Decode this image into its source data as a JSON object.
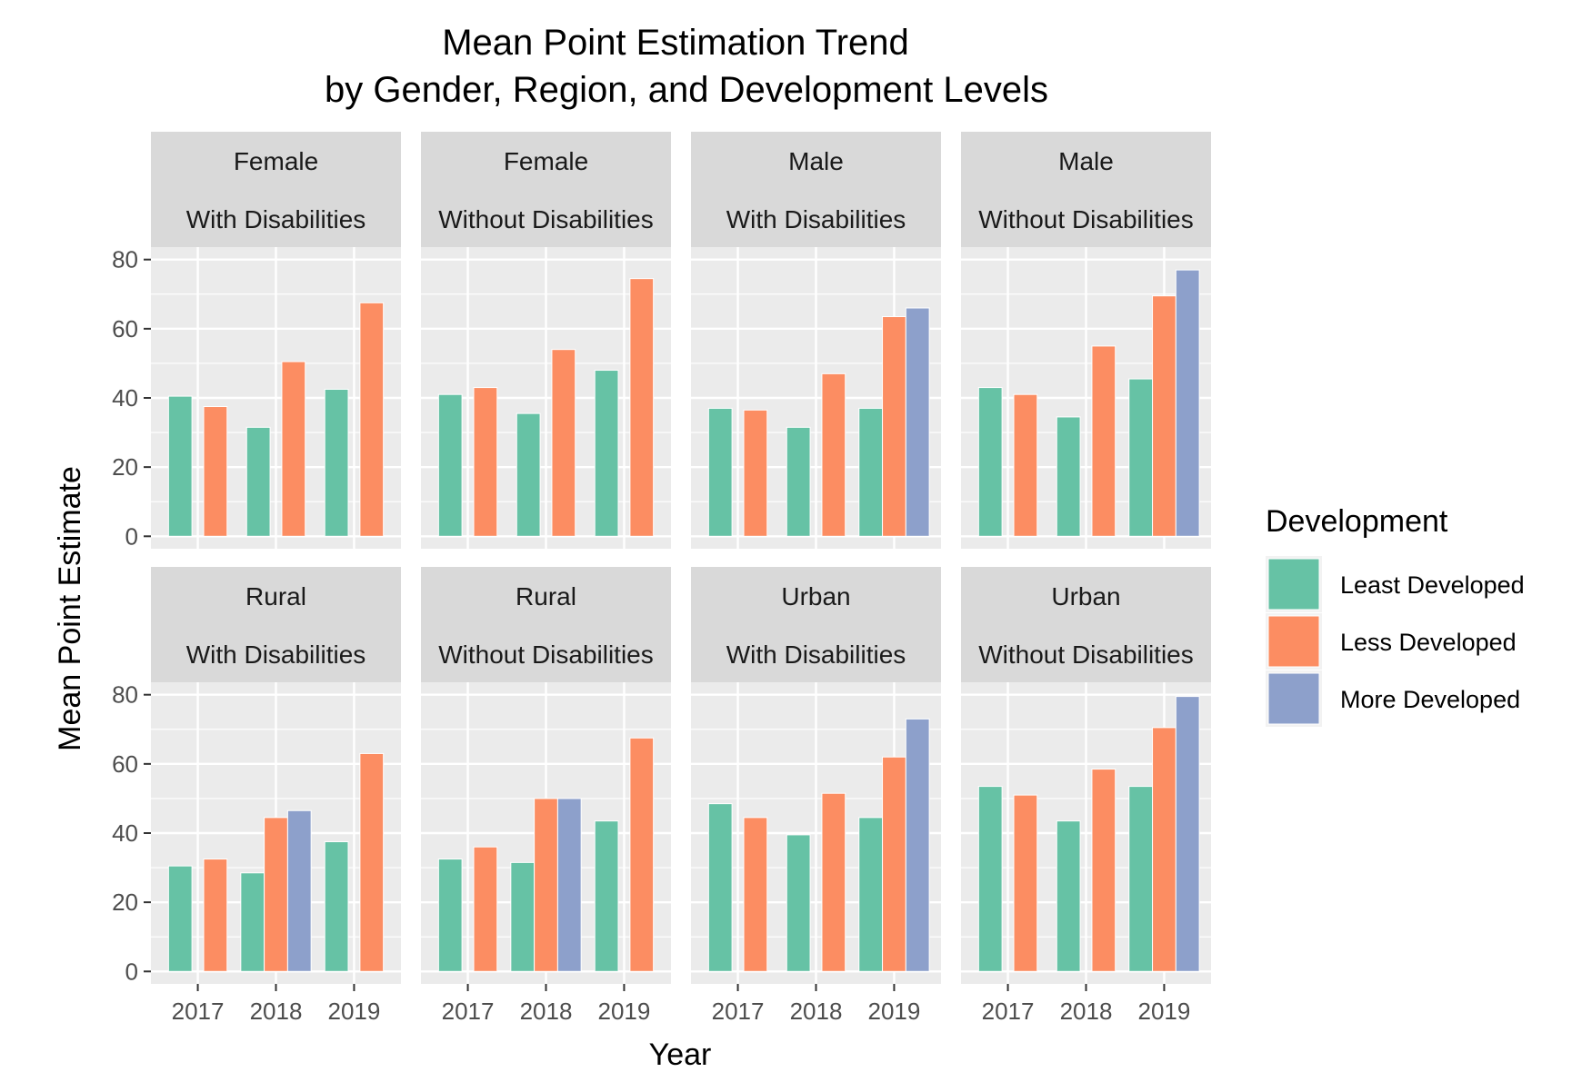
{
  "chart_data": {
    "type": "bar",
    "title_lines": [
      "Mean Point Estimation Trend",
      "by Gender, Region, and Development Levels"
    ],
    "xlabel": "Year",
    "ylabel": "Mean Point Estimate",
    "ylim": [
      0,
      80
    ],
    "yticks": [
      0,
      20,
      40,
      60,
      80
    ],
    "categories": [
      "2017",
      "2018",
      "2019"
    ],
    "legend": {
      "title": "Development",
      "position": "right",
      "entries": [
        {
          "name": "Least Developed",
          "color": "#66c2a5"
        },
        {
          "name": "Less Developed",
          "color": "#fc8d62"
        },
        {
          "name": "More Developed",
          "color": "#8da0cb"
        }
      ]
    },
    "grid": true,
    "facets": [
      {
        "strip": [
          "Female",
          "With Disabilities"
        ],
        "series": [
          {
            "name": "Least Developed",
            "values": [
              40.5,
              31.5,
              42.5
            ]
          },
          {
            "name": "Less Developed",
            "values": [
              37.5,
              50.5,
              67.5
            ]
          },
          {
            "name": "More Developed",
            "values": [
              null,
              null,
              null
            ]
          }
        ]
      },
      {
        "strip": [
          "Female",
          "Without Disabilities"
        ],
        "series": [
          {
            "name": "Least Developed",
            "values": [
              41,
              35.5,
              48
            ]
          },
          {
            "name": "Less Developed",
            "values": [
              43,
              54,
              74.5
            ]
          },
          {
            "name": "More Developed",
            "values": [
              null,
              null,
              null
            ]
          }
        ]
      },
      {
        "strip": [
          "Male",
          "With Disabilities"
        ],
        "series": [
          {
            "name": "Least Developed",
            "values": [
              37,
              31.5,
              37
            ]
          },
          {
            "name": "Less Developed",
            "values": [
              36.5,
              47,
              63.5
            ]
          },
          {
            "name": "More Developed",
            "values": [
              null,
              null,
              66
            ]
          }
        ]
      },
      {
        "strip": [
          "Male",
          "Without Disabilities"
        ],
        "series": [
          {
            "name": "Least Developed",
            "values": [
              43,
              34.5,
              45.5
            ]
          },
          {
            "name": "Less Developed",
            "values": [
              41,
              55,
              69.5
            ]
          },
          {
            "name": "More Developed",
            "values": [
              null,
              null,
              77
            ]
          }
        ]
      },
      {
        "strip": [
          "Rural",
          "With Disabilities"
        ],
        "series": [
          {
            "name": "Least Developed",
            "values": [
              30.5,
              28.5,
              37.5
            ]
          },
          {
            "name": "Less Developed",
            "values": [
              32.5,
              44.5,
              63
            ]
          },
          {
            "name": "More Developed",
            "values": [
              null,
              46.5,
              null
            ]
          }
        ]
      },
      {
        "strip": [
          "Rural",
          "Without Disabilities"
        ],
        "series": [
          {
            "name": "Least Developed",
            "values": [
              32.5,
              31.5,
              43.5
            ]
          },
          {
            "name": "Less Developed",
            "values": [
              36,
              50,
              67.5
            ]
          },
          {
            "name": "More Developed",
            "values": [
              null,
              50,
              null
            ]
          }
        ]
      },
      {
        "strip": [
          "Urban",
          "With Disabilities"
        ],
        "series": [
          {
            "name": "Least Developed",
            "values": [
              48.5,
              39.5,
              44.5
            ]
          },
          {
            "name": "Less Developed",
            "values": [
              44.5,
              51.5,
              62
            ]
          },
          {
            "name": "More Developed",
            "values": [
              null,
              null,
              73
            ]
          }
        ]
      },
      {
        "strip": [
          "Urban",
          "Without Disabilities"
        ],
        "series": [
          {
            "name": "Least Developed",
            "values": [
              53.5,
              43.5,
              53.5
            ]
          },
          {
            "name": "Less Developed",
            "values": [
              51,
              58.5,
              70.5
            ]
          },
          {
            "name": "More Developed",
            "values": [
              null,
              null,
              79.5
            ]
          }
        ]
      }
    ]
  }
}
